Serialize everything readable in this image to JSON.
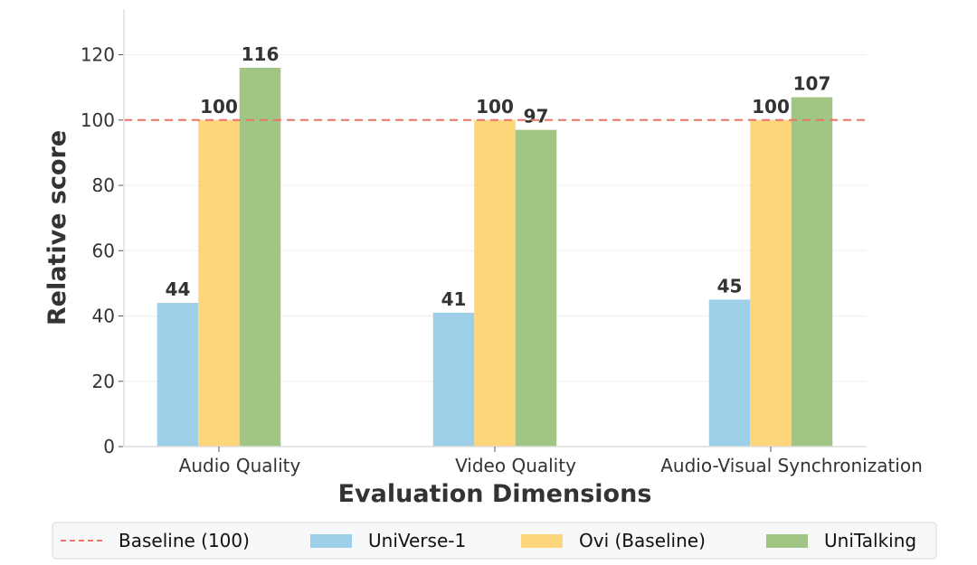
{
  "chart_data": {
    "type": "bar",
    "title": "",
    "xlabel": "Evaluation Dimensions",
    "ylabel": "Relative score",
    "ylim": [
      0,
      134
    ],
    "yticks": [
      0,
      20,
      40,
      60,
      80,
      100,
      120
    ],
    "categories": [
      "Audio Quality",
      "Video Quality",
      "Audio-Visual Synchronization"
    ],
    "series": [
      {
        "name": "UniVerse-1",
        "color": "#9ecfe8",
        "values": [
          44,
          41,
          45
        ]
      },
      {
        "name": "Ovi (Baseline)",
        "color": "#fdd57a",
        "values": [
          100,
          100,
          100
        ]
      },
      {
        "name": "UniTalking",
        "color": "#a1c584",
        "values": [
          116,
          97,
          107
        ]
      }
    ],
    "reference_line": {
      "name": "Baseline (100)",
      "value": 100,
      "color": "#ee7366",
      "style": "dashed"
    },
    "grid": true,
    "legend": "bottom-center"
  }
}
